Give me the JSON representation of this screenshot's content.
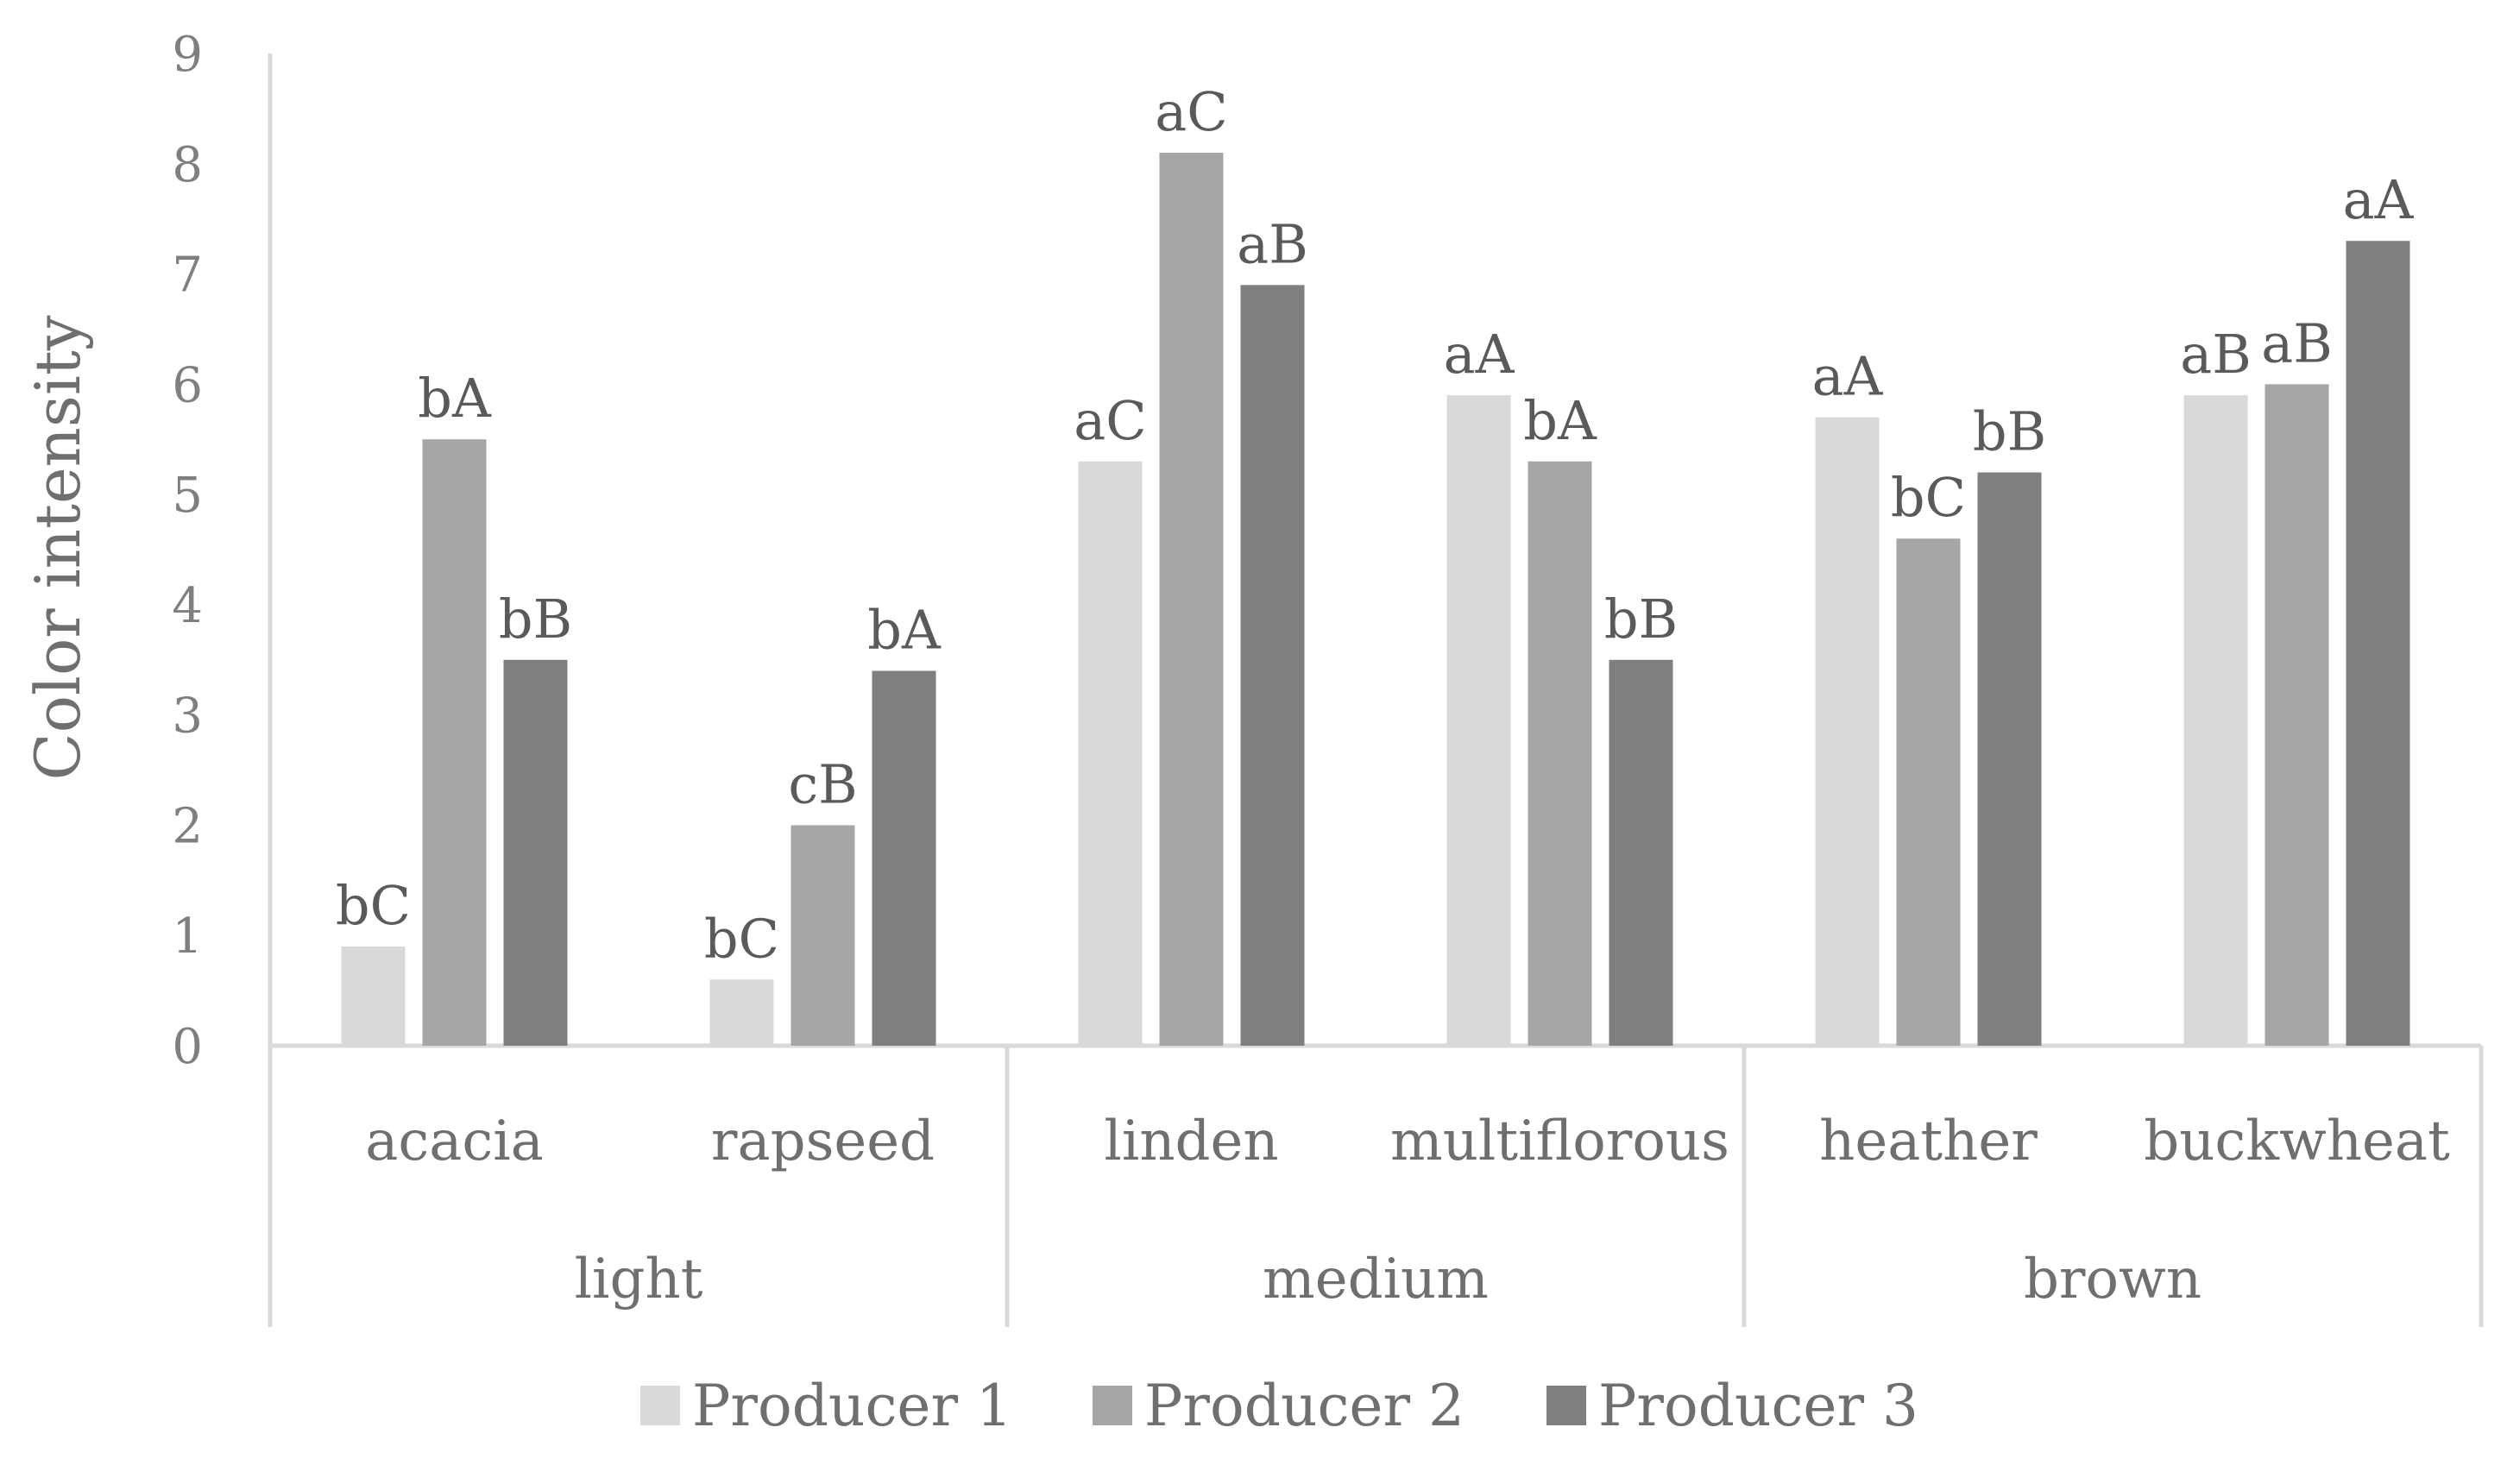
{
  "chart_data": {
    "type": "bar",
    "title": "",
    "xlabel": "",
    "ylabel": "Color intensity",
    "ylim": [
      0,
      9
    ],
    "yticks": [
      "0",
      "1",
      "2",
      "3",
      "4",
      "5",
      "6",
      "7",
      "8",
      "9"
    ],
    "grid": false,
    "legend_position": "bottom",
    "groups": [
      {
        "name": "light",
        "categories": [
          "acacia",
          "rapseed"
        ]
      },
      {
        "name": "medium",
        "categories": [
          "linden",
          "multiflorous"
        ]
      },
      {
        "name": "brown",
        "categories": [
          "heather",
          "buckwheat"
        ]
      }
    ],
    "categories": [
      "acacia",
      "rapseed",
      "linden",
      "multiflorous",
      "heather",
      "buckwheat"
    ],
    "series": [
      {
        "name": "Producer 1",
        "color": "#d9d9d9",
        "values": [
          0.9,
          0.6,
          5.3,
          5.9,
          5.7,
          5.9
        ],
        "labels": [
          "bC",
          "bC",
          "aC",
          "aA",
          "aA",
          "aB"
        ]
      },
      {
        "name": "Producer 2",
        "color": "#a6a6a6",
        "values": [
          5.5,
          2.0,
          8.1,
          5.3,
          4.6,
          6.0
        ],
        "labels": [
          "bA",
          "cB",
          "aC",
          "bA",
          "bC",
          "aB"
        ]
      },
      {
        "name": "Producer 3",
        "color": "#7f7f7f",
        "values": [
          3.5,
          3.4,
          6.9,
          3.5,
          5.2,
          7.3
        ],
        "labels": [
          "bB",
          "bA",
          "aB",
          "bB",
          "bB",
          "aA"
        ]
      }
    ]
  }
}
